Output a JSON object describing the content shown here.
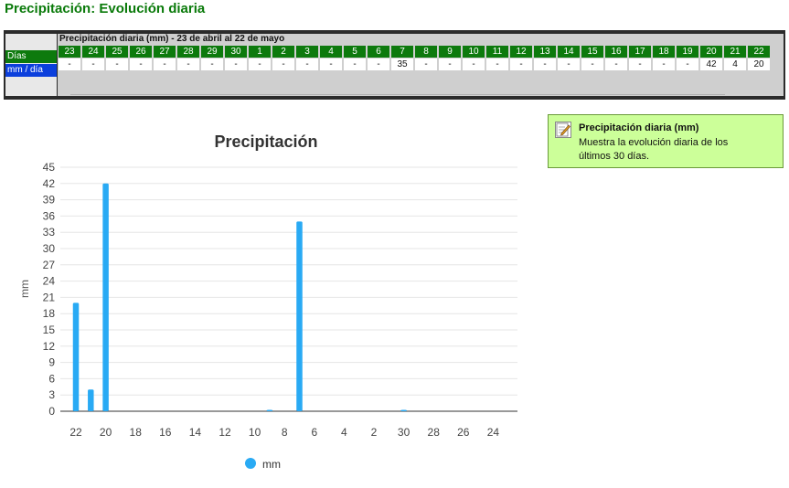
{
  "page": {
    "title": "Precipitación: Evolución diaria"
  },
  "table": {
    "header": "Precipitación diaria (mm) - 23 de abril al 22 de mayo",
    "row_labels": [
      "Días",
      "mm / día"
    ],
    "days": [
      "23",
      "24",
      "25",
      "26",
      "27",
      "28",
      "29",
      "30",
      "1",
      "2",
      "3",
      "4",
      "5",
      "6",
      "7",
      "8",
      "9",
      "10",
      "11",
      "12",
      "13",
      "14",
      "15",
      "16",
      "17",
      "18",
      "19",
      "20",
      "21",
      "22"
    ],
    "values": [
      "-",
      "-",
      "-",
      "-",
      "-",
      "-",
      "-",
      "-",
      "-",
      "-",
      "-",
      "-",
      "-",
      "-",
      "35",
      "-",
      "-",
      "-",
      "-",
      "-",
      "-",
      "-",
      "-",
      "-",
      "-",
      "-",
      "-",
      "42",
      "4",
      "20"
    ]
  },
  "info": {
    "icon": "edit-icon",
    "title": "Precipitación diaria (mm)",
    "description": "Muestra la evolución diaria de los últimos 30 días."
  },
  "colors": {
    "bar": "#29aaf4",
    "day_header": "#0d7a0d",
    "highlight": "#0b3fdc",
    "title": "#0a7a0a"
  },
  "chart_data": {
    "type": "bar",
    "title": "Precipitación",
    "ylabel": "mm",
    "xlabel": "",
    "ylim": [
      0,
      45
    ],
    "yticks": [
      0,
      3,
      6,
      9,
      12,
      15,
      18,
      21,
      24,
      27,
      30,
      33,
      36,
      39,
      42,
      45
    ],
    "x_tick_labels": [
      "22",
      "20",
      "18",
      "16",
      "14",
      "12",
      "10",
      "8",
      "6",
      "4",
      "2",
      "30",
      "28",
      "26",
      "24"
    ],
    "categories": [
      "22",
      "21",
      "20",
      "19",
      "18",
      "17",
      "16",
      "15",
      "14",
      "13",
      "12",
      "11",
      "10",
      "9",
      "8",
      "7",
      "6",
      "5",
      "4",
      "3",
      "2",
      "1",
      "30",
      "29",
      "28",
      "27",
      "26",
      "25",
      "24",
      "23"
    ],
    "series": [
      {
        "name": "mm",
        "values": [
          20,
          4,
          42,
          0,
          0,
          0,
          0,
          0,
          0,
          0,
          0,
          0,
          0,
          0.2,
          0,
          35,
          0,
          0,
          0,
          0,
          0,
          0,
          0.2,
          0,
          0,
          0,
          0,
          0,
          0,
          0
        ]
      }
    ],
    "grid": true,
    "legend": "bottom"
  }
}
